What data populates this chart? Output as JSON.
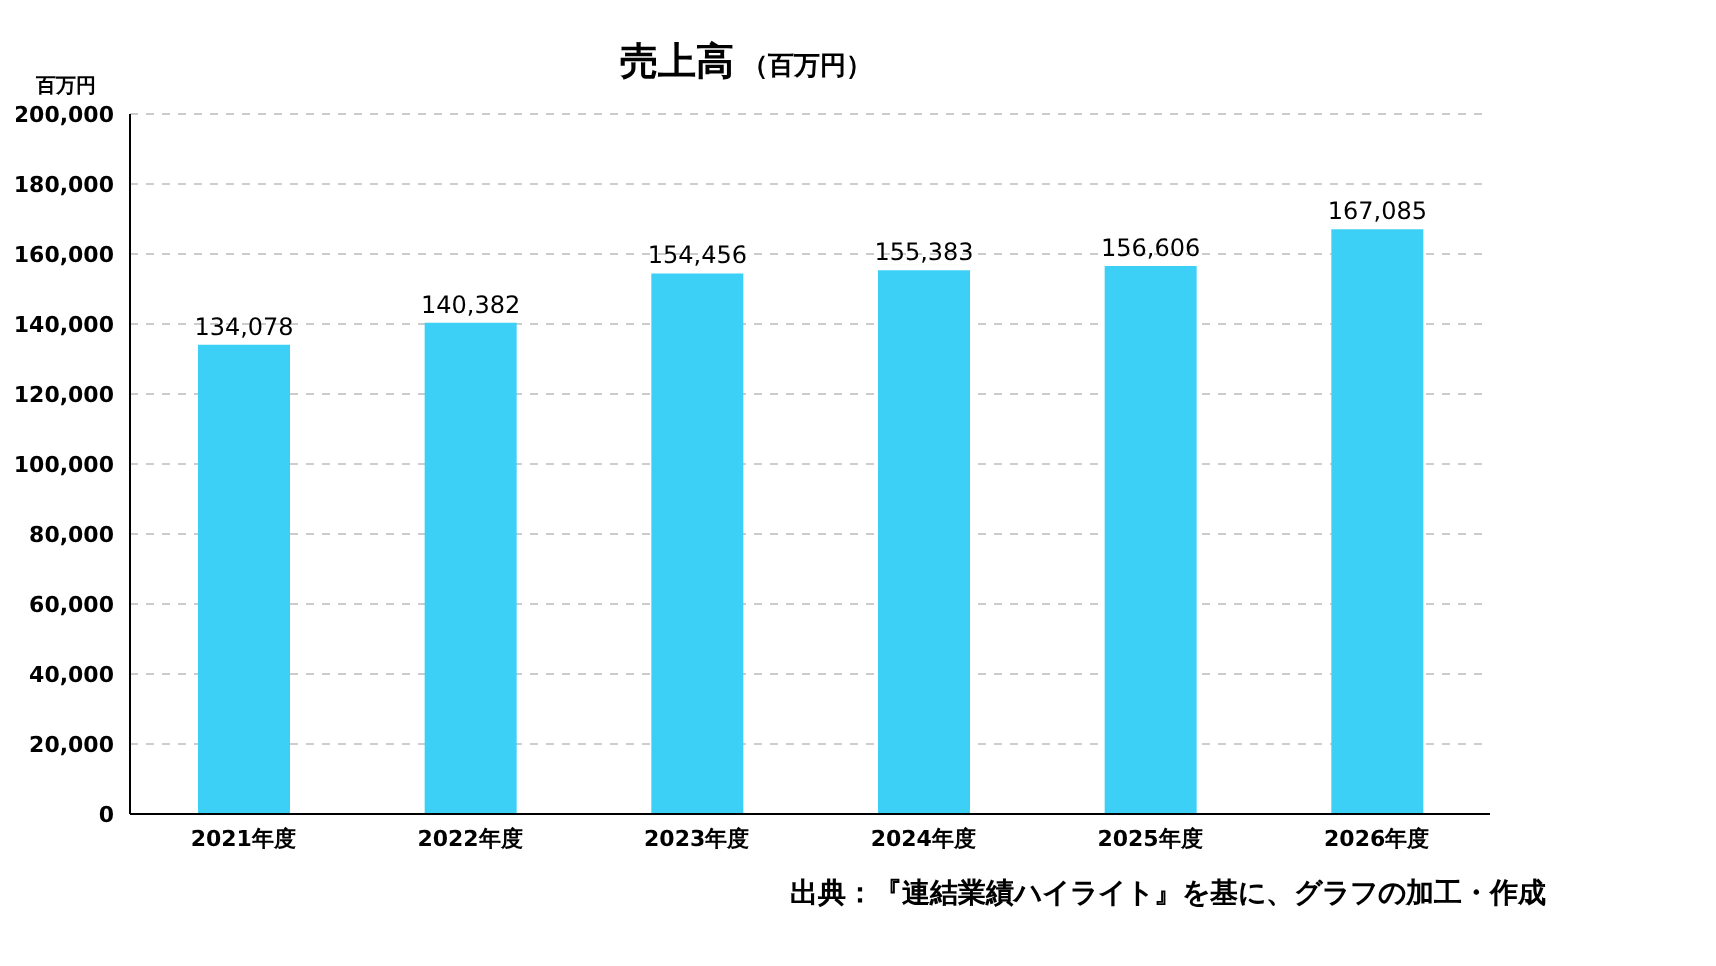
{
  "chart_data": {
    "type": "bar",
    "title": "売上高",
    "subtitle": "（百万円）",
    "ylabel": "百万円",
    "categories": [
      "2021年度",
      "2022年度",
      "2023年度",
      "2024年度",
      "2025年度",
      "2026年度"
    ],
    "values": [
      134078,
      140382,
      154456,
      155383,
      156606,
      167085
    ],
    "value_labels": [
      "134,078",
      "140,382",
      "154,456",
      "155,383",
      "156,606",
      "167,085"
    ],
    "color": "#3dd0f7",
    "ylim": [
      0,
      200000
    ],
    "yticks": [
      0,
      {
        "value": 20000,
        "label": "20,000"
      },
      {
        "value": 40000,
        "label": "40,000"
      },
      {
        "value": 60000,
        "label": "60,000"
      },
      {
        "value": 80000,
        "label": "80,000"
      },
      {
        "value": 100000,
        "label": "100,000"
      },
      {
        "value": 120000,
        "label": "120,000"
      },
      {
        "value": 140000,
        "label": "140,000"
      },
      {
        "value": 160000,
        "label": "160,000"
      },
      {
        "value": 180000,
        "label": "180,000"
      },
      {
        "value": 200000,
        "label": "200,000"
      }
    ],
    "grid": "y",
    "annotations": [
      "出典：『連結業績ハイライト』を基に、グラフの加工・作成"
    ]
  }
}
